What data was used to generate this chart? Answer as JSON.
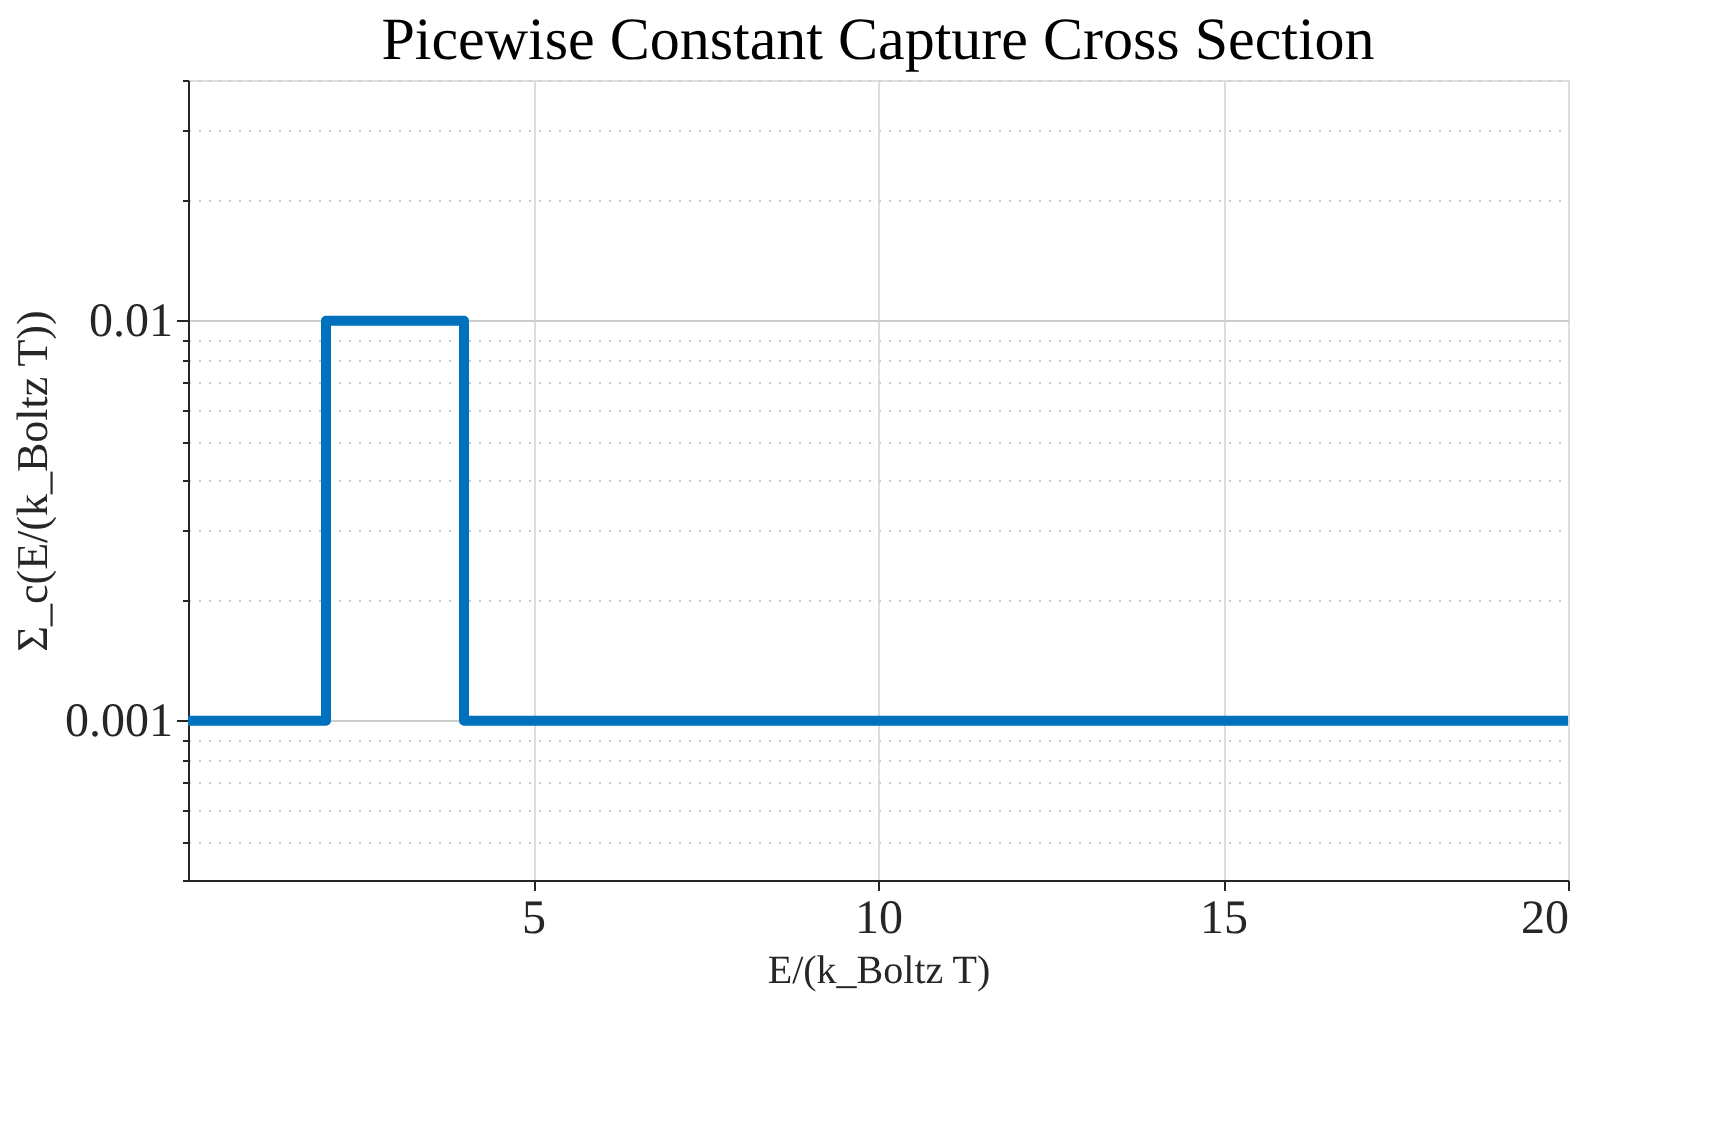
{
  "chart_data": {
    "type": "step",
    "title": "Picewise Constant Capture Cross Section",
    "xlabel": "E/(k_Boltz T)",
    "ylabel": "Σ_c(E/(k_Boltz T))",
    "x": [
      0,
      2,
      4,
      20
    ],
    "series": [
      {
        "color": "#0072bd",
        "values": [
          0.001,
          0.01,
          0.001,
          0.001
        ]
      }
    ],
    "xlim": [
      0,
      20
    ],
    "xticks": [
      5,
      10,
      15,
      20
    ],
    "ylim": [
      0.0004,
      0.04
    ],
    "yticks": [
      {
        "value": 0.0004,
        "label": null
      },
      {
        "value": 0.0005,
        "label": null
      },
      {
        "value": 0.0006,
        "label": null
      },
      {
        "value": 0.0007,
        "label": null
      },
      {
        "value": 0.0008,
        "label": null
      },
      {
        "value": 0.0009,
        "label": null
      },
      0.001,
      {
        "value": 0.002,
        "label": null
      },
      {
        "value": 0.003,
        "label": null
      },
      {
        "value": 0.004,
        "label": null
      },
      {
        "value": 0.005,
        "label": null
      },
      {
        "value": 0.006,
        "label": null
      },
      {
        "value": 0.007,
        "label": null
      },
      {
        "value": 0.008,
        "label": null
      },
      {
        "value": 0.009,
        "label": null
      },
      0.01,
      {
        "value": 0.02,
        "label": null
      },
      {
        "value": 0.03,
        "label": null
      },
      {
        "value": 0.04,
        "label": null
      }
    ],
    "log": true,
    "grid": true,
    "line_style": "solid",
    "marker": "none"
  }
}
